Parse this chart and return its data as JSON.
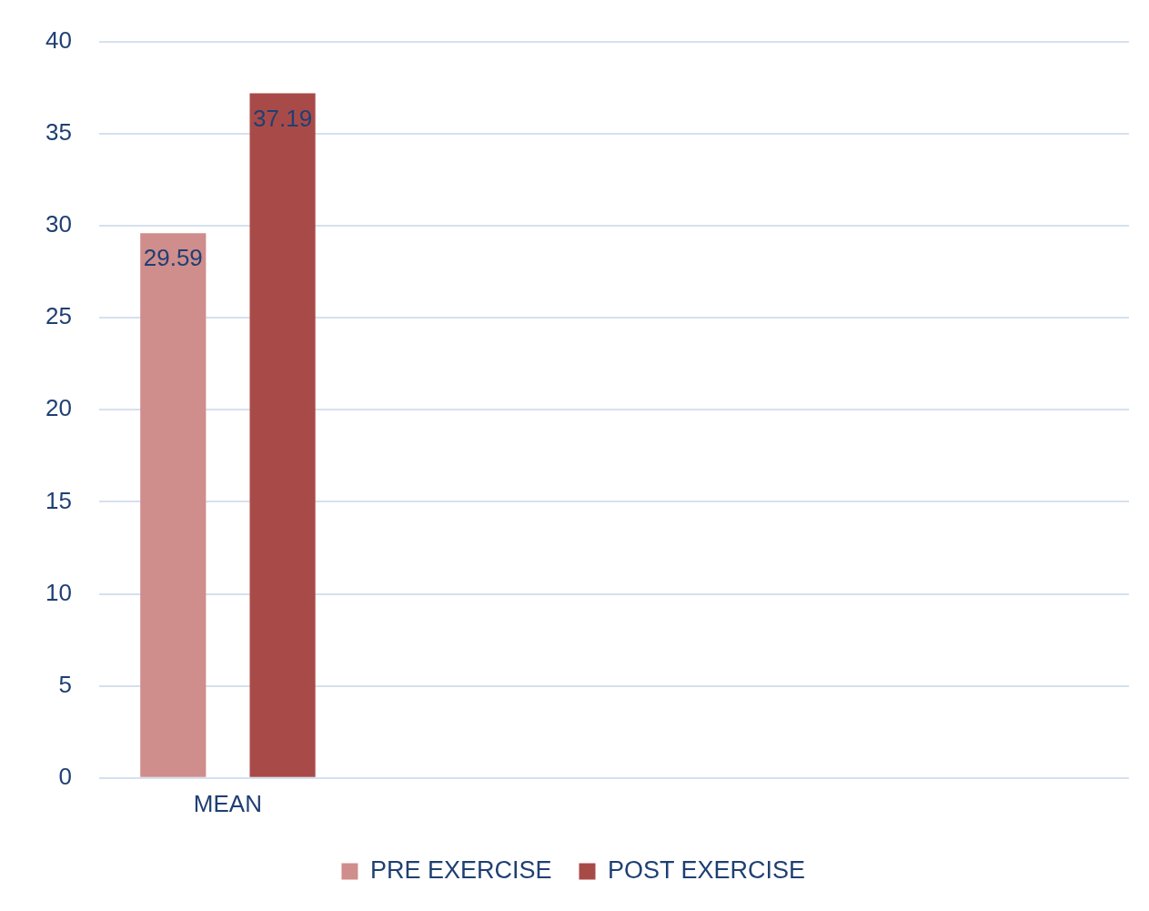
{
  "chart_data": {
    "type": "bar",
    "categories": [
      "MEAN",
      null,
      null,
      null
    ],
    "series": [
      {
        "name": "PRE EXERCISE",
        "color": "#cf8d8b",
        "values": [
          29.59,
          null,
          null,
          null
        ]
      },
      {
        "name": "POST EXERCISE",
        "color": "#a84b48",
        "values": [
          37.19,
          null,
          null,
          null
        ]
      }
    ],
    "ylim": [
      0,
      40
    ],
    "yticks": [
      0,
      5,
      10,
      15,
      20,
      25,
      30,
      35,
      40
    ],
    "grid": "y",
    "legend": "bottom",
    "data_labels": true
  }
}
